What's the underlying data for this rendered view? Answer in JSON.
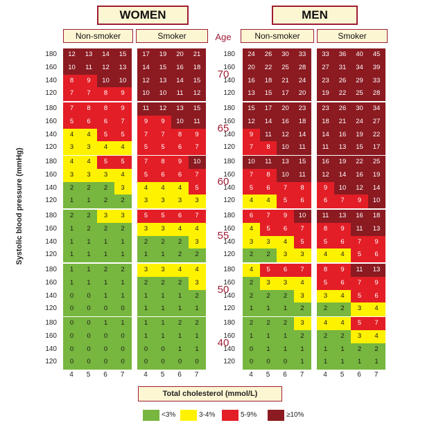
{
  "header": {
    "women": "WOMEN",
    "men": "MEN",
    "non_smoker": "Non-smoker",
    "smoker": "Smoker",
    "age_label": "Age"
  },
  "y_axis_title": "Systolic blood pressure (mmHg)",
  "x_axis_title": "Total cholesterol (mmol/L)",
  "legend": [
    {
      "label": "<3%",
      "color": "#77b63f"
    },
    {
      "label": "3-4%",
      "color": "#fff200"
    },
    {
      "label": "5-9%",
      "color": "#e31e26"
    },
    {
      "label": "≥10%",
      "color": "#8b1a21"
    }
  ],
  "chart_data": {
    "type": "heatmap",
    "ages": [
      70,
      65,
      60,
      55,
      50,
      40
    ],
    "systolic_bp": [
      180,
      160,
      140,
      120
    ],
    "cholesterol": [
      4,
      5,
      6,
      7
    ],
    "groups": [
      "women_non_smoker",
      "women_smoker",
      "men_non_smoker",
      "men_smoker"
    ],
    "risk_categories": [
      "<3%",
      "3-4%",
      "5-9%",
      "≥10%"
    ],
    "values": {
      "women_non_smoker": [
        [
          [
            12,
            13,
            14,
            15
          ],
          [
            10,
            11,
            12,
            13
          ],
          [
            8,
            9,
            10,
            10
          ],
          [
            7,
            7,
            8,
            9
          ]
        ],
        [
          [
            7,
            8,
            8,
            9
          ],
          [
            5,
            6,
            6,
            7
          ],
          [
            4,
            4,
            5,
            5
          ],
          [
            3,
            3,
            4,
            4
          ]
        ],
        [
          [
            4,
            4,
            5,
            5
          ],
          [
            3,
            3,
            3,
            4
          ],
          [
            2,
            2,
            2,
            3
          ],
          [
            1,
            1,
            2,
            2
          ]
        ],
        [
          [
            2,
            2,
            3,
            3
          ],
          [
            1,
            2,
            2,
            2
          ],
          [
            1,
            1,
            1,
            1
          ],
          [
            1,
            1,
            1,
            1
          ]
        ],
        [
          [
            1,
            1,
            2,
            2
          ],
          [
            1,
            1,
            1,
            1
          ],
          [
            0,
            0,
            1,
            1
          ],
          [
            0,
            0,
            0,
            0
          ]
        ],
        [
          [
            0,
            0,
            1,
            1
          ],
          [
            0,
            0,
            0,
            0
          ],
          [
            0,
            0,
            0,
            0
          ],
          [
            0,
            0,
            0,
            0
          ]
        ]
      ],
      "women_smoker": [
        [
          [
            17,
            19,
            20,
            21
          ],
          [
            14,
            15,
            16,
            18
          ],
          [
            12,
            13,
            14,
            15
          ],
          [
            10,
            10,
            11,
            12
          ]
        ],
        [
          [
            11,
            12,
            13,
            15
          ],
          [
            9,
            9,
            10,
            11
          ],
          [
            7,
            7,
            8,
            9
          ],
          [
            5,
            5,
            6,
            7
          ]
        ],
        [
          [
            7,
            8,
            9,
            10
          ],
          [
            5,
            6,
            6,
            7
          ],
          [
            4,
            4,
            4,
            5
          ],
          [
            3,
            3,
            3,
            3
          ]
        ],
        [
          [
            5,
            5,
            6,
            7
          ],
          [
            3,
            3,
            4,
            4
          ],
          [
            2,
            2,
            2,
            3
          ],
          [
            1,
            1,
            2,
            2
          ]
        ],
        [
          [
            3,
            3,
            4,
            4
          ],
          [
            2,
            2,
            2,
            3
          ],
          [
            1,
            1,
            1,
            2
          ],
          [
            1,
            1,
            1,
            1
          ]
        ],
        [
          [
            1,
            1,
            2,
            2
          ],
          [
            1,
            1,
            1,
            1
          ],
          [
            0,
            0,
            1,
            1
          ],
          [
            0,
            0,
            0,
            0
          ]
        ]
      ],
      "men_non_smoker": [
        [
          [
            24,
            26,
            30,
            33
          ],
          [
            20,
            22,
            25,
            28
          ],
          [
            16,
            18,
            21,
            24
          ],
          [
            13,
            15,
            17,
            20
          ]
        ],
        [
          [
            15,
            17,
            20,
            23
          ],
          [
            12,
            14,
            16,
            18
          ],
          [
            9,
            11,
            12,
            14
          ],
          [
            7,
            8,
            10,
            11
          ]
        ],
        [
          [
            10,
            11,
            13,
            15
          ],
          [
            7,
            8,
            10,
            11
          ],
          [
            5,
            6,
            7,
            8
          ],
          [
            4,
            4,
            5,
            6
          ]
        ],
        [
          [
            6,
            7,
            9,
            10
          ],
          [
            4,
            5,
            6,
            7
          ],
          [
            3,
            3,
            4,
            5
          ],
          [
            2,
            2,
            3,
            3
          ]
        ],
        [
          [
            4,
            5,
            6,
            7
          ],
          [
            2,
            3,
            3,
            4
          ],
          [
            2,
            2,
            2,
            3
          ],
          [
            1,
            1,
            1,
            2
          ]
        ],
        [
          [
            2,
            2,
            2,
            3
          ],
          [
            1,
            1,
            1,
            2
          ],
          [
            0,
            1,
            1,
            1
          ],
          [
            0,
            0,
            0,
            1
          ]
        ]
      ],
      "men_smoker": [
        [
          [
            33,
            36,
            40,
            45
          ],
          [
            27,
            31,
            34,
            39
          ],
          [
            23,
            26,
            29,
            33
          ],
          [
            19,
            22,
            25,
            28
          ]
        ],
        [
          [
            23,
            26,
            30,
            34
          ],
          [
            18,
            21,
            24,
            27
          ],
          [
            14,
            16,
            19,
            22
          ],
          [
            11,
            13,
            15,
            17
          ]
        ],
        [
          [
            16,
            19,
            22,
            25
          ],
          [
            12,
            14,
            16,
            19
          ],
          [
            9,
            10,
            12,
            14
          ],
          [
            6,
            7,
            9,
            10
          ]
        ],
        [
          [
            11,
            13,
            16,
            18
          ],
          [
            8,
            9,
            11,
            13
          ],
          [
            5,
            6,
            7,
            9
          ],
          [
            4,
            4,
            5,
            6
          ]
        ],
        [
          [
            8,
            9,
            11,
            13
          ],
          [
            5,
            6,
            7,
            9
          ],
          [
            3,
            4,
            5,
            6
          ],
          [
            2,
            2,
            3,
            4
          ]
        ],
        [
          [
            4,
            4,
            5,
            7
          ],
          [
            2,
            2,
            3,
            4
          ],
          [
            1,
            1,
            2,
            2
          ],
          [
            1,
            1,
            1,
            1
          ]
        ]
      ]
    }
  }
}
